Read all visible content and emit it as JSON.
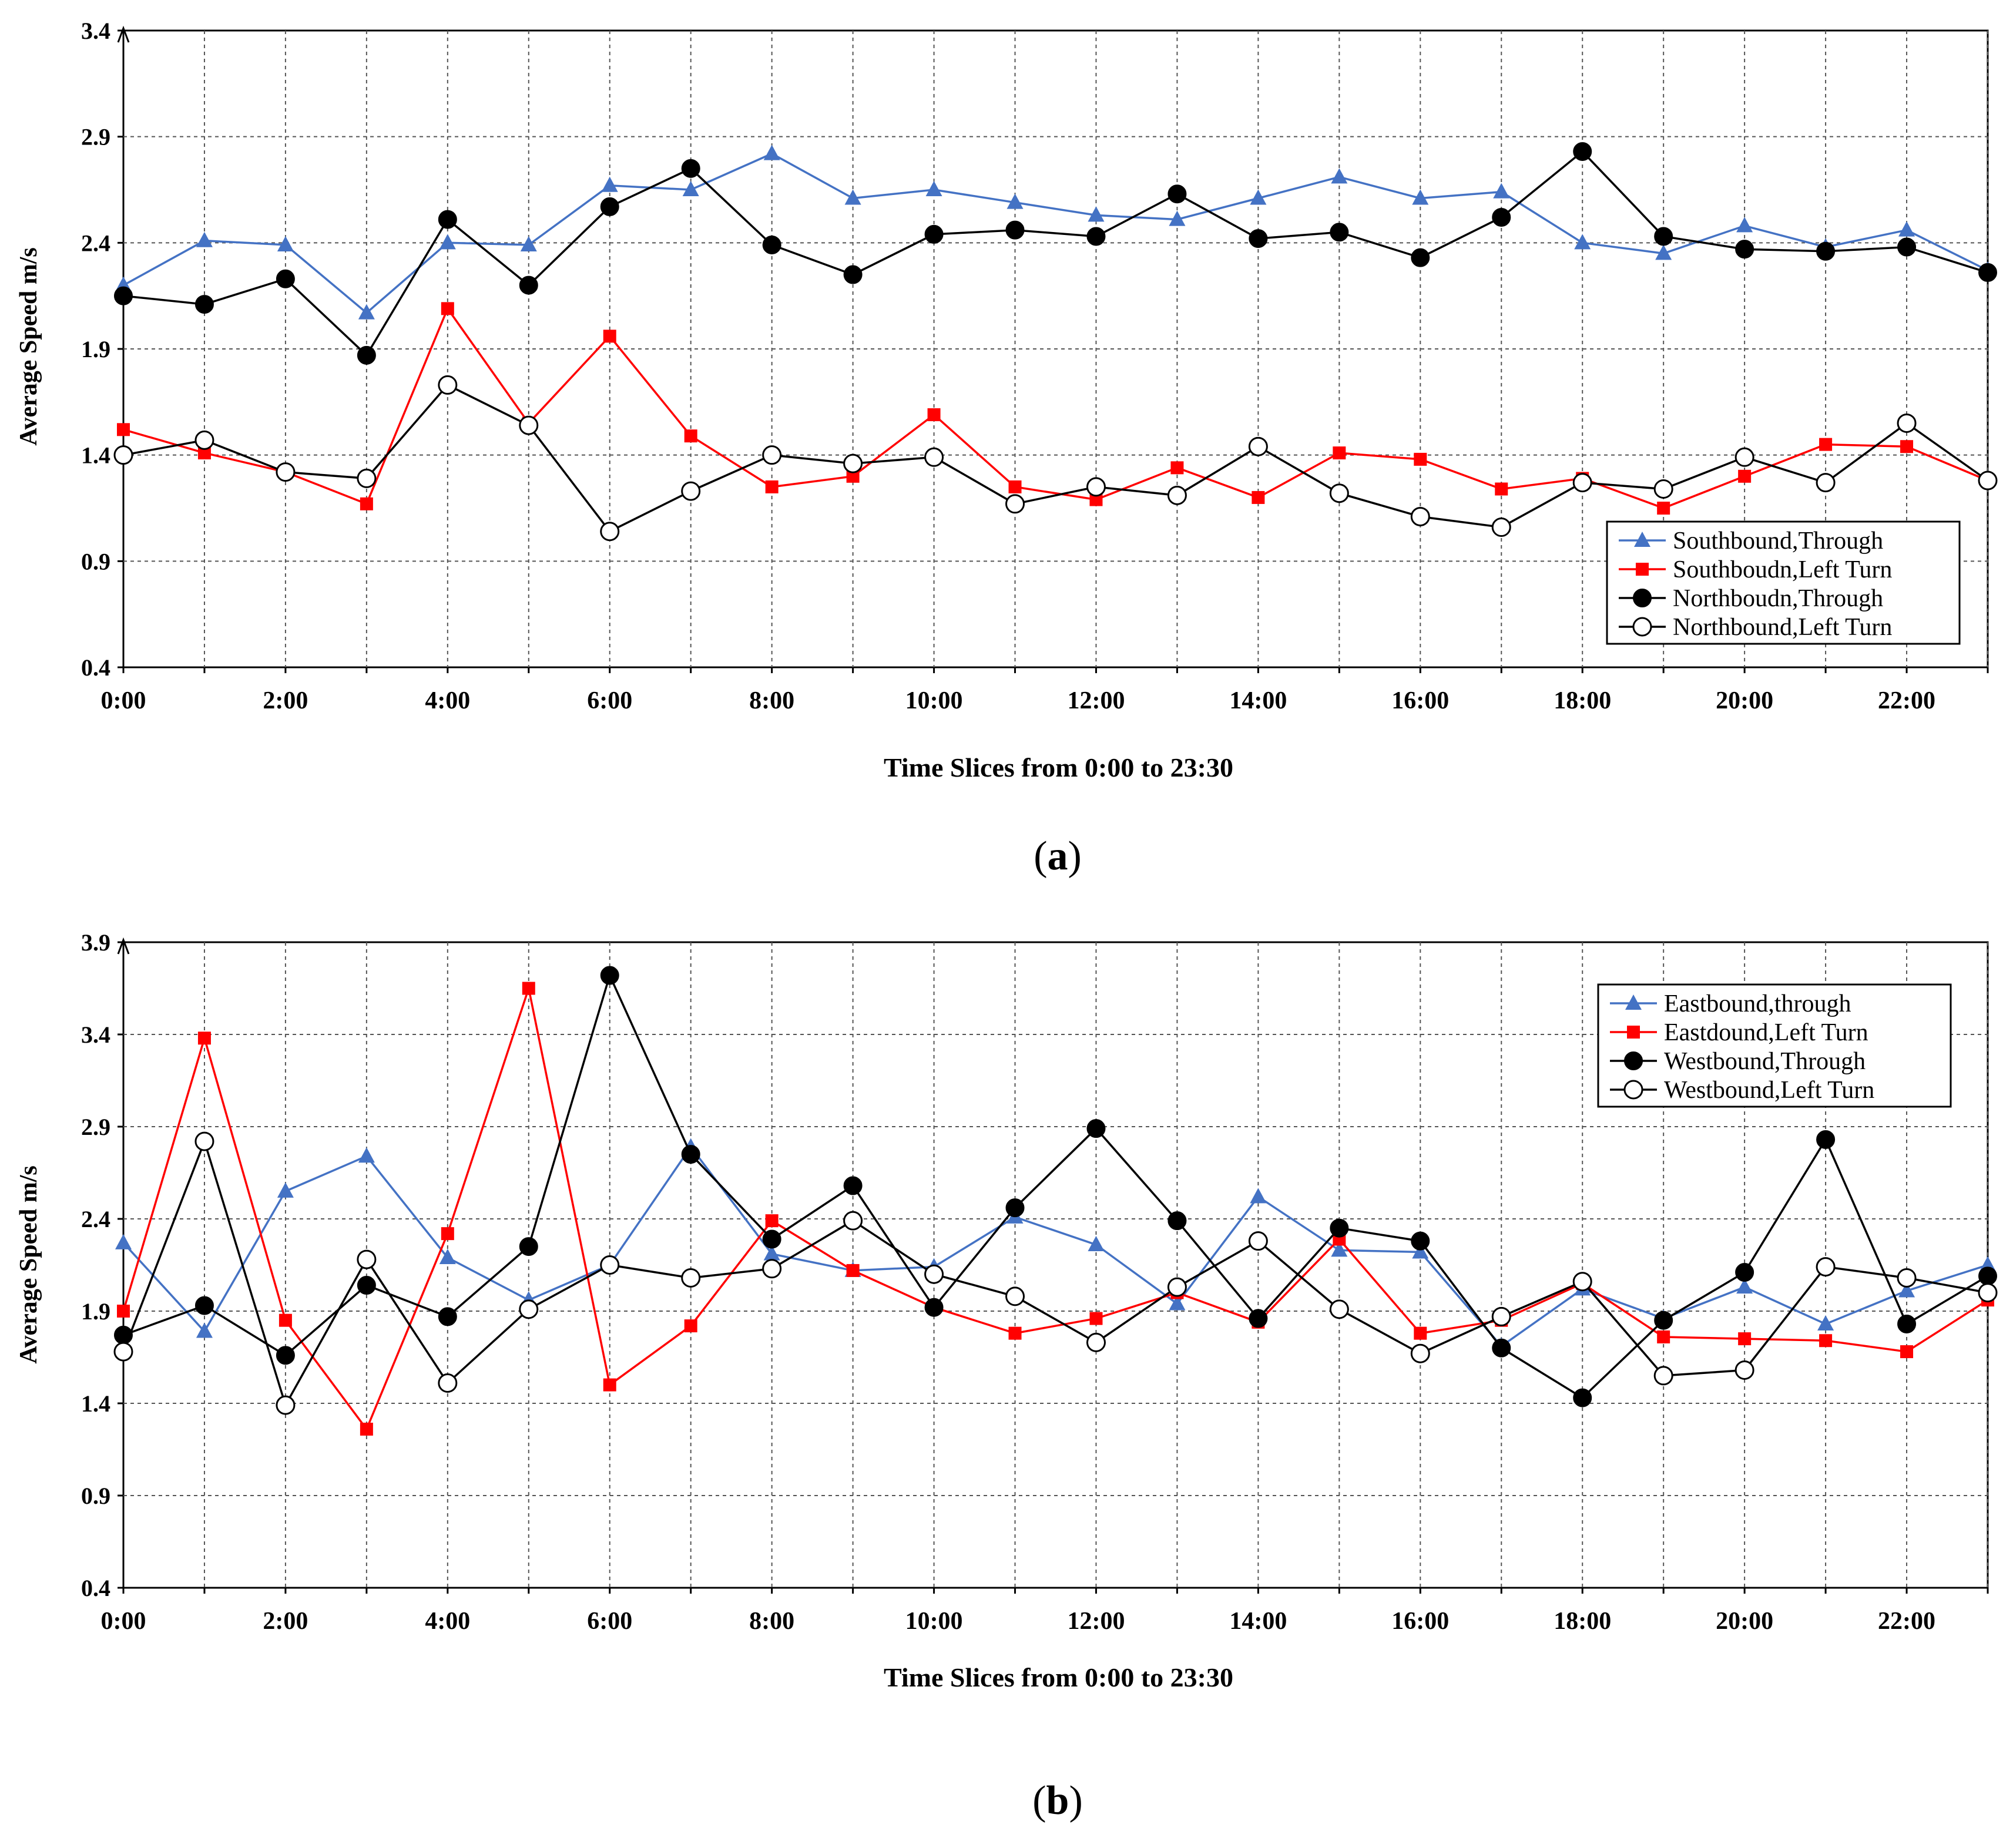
{
  "chart_data": [
    {
      "type": "line",
      "panel_label": "a",
      "xlabel": "Time Slices from 0:00 to 23:30",
      "ylabel": "Average Speed m/s",
      "ylim": [
        0.4,
        3.4
      ],
      "yticks": [
        "0.4",
        "0.9",
        "1.4",
        "1.9",
        "2.4",
        "2.9",
        "3.4"
      ],
      "x": [
        0,
        1,
        2,
        3,
        4,
        5,
        6,
        7,
        8,
        9,
        10,
        11,
        12,
        13,
        14,
        15,
        16,
        17,
        18,
        19,
        20,
        21,
        22,
        23
      ],
      "xtick_labels": [
        "0:00",
        "2:00",
        "4:00",
        "6:00",
        "8:00",
        "10:00",
        "12:00",
        "14:00",
        "16:00",
        "18:00",
        "20:00",
        "22:00"
      ],
      "grid": true,
      "legend_position": "bottom-right",
      "series": [
        {
          "name": "Southbound,Through",
          "color": "#4472C4",
          "marker": "triangle",
          "values": [
            2.2,
            2.41,
            2.39,
            2.07,
            2.4,
            2.39,
            2.67,
            2.65,
            2.82,
            2.61,
            2.65,
            2.59,
            2.53,
            2.51,
            2.61,
            2.71,
            2.61,
            2.64,
            2.4,
            2.35,
            2.48,
            2.38,
            2.46,
            2.27
          ]
        },
        {
          "name": "Southboudn,Left Turn",
          "color": "#FF0000",
          "marker": "square",
          "values": [
            1.52,
            1.41,
            1.32,
            1.17,
            2.09,
            1.55,
            1.96,
            1.49,
            1.25,
            1.3,
            1.59,
            1.25,
            1.19,
            1.34,
            1.2,
            1.41,
            1.38,
            1.24,
            1.29,
            1.15,
            1.3,
            1.45,
            1.44,
            1.28
          ]
        },
        {
          "name": "Northboudn,Through",
          "color": "#000000",
          "marker": "circle-filled",
          "values": [
            2.15,
            2.11,
            2.23,
            1.87,
            2.51,
            2.2,
            2.57,
            2.75,
            2.39,
            2.25,
            2.44,
            2.46,
            2.43,
            2.63,
            2.42,
            2.45,
            2.33,
            2.52,
            2.83,
            2.43,
            2.37,
            2.36,
            2.38,
            2.26
          ]
        },
        {
          "name": "Northbound,Left Turn",
          "color": "#000000",
          "marker": "circle-open",
          "values": [
            1.4,
            1.47,
            1.32,
            1.29,
            1.73,
            1.54,
            1.04,
            1.23,
            1.4,
            1.36,
            1.39,
            1.17,
            1.25,
            1.21,
            1.44,
            1.22,
            1.11,
            1.06,
            1.27,
            1.24,
            1.39,
            1.27,
            1.55,
            1.28
          ]
        }
      ]
    },
    {
      "type": "line",
      "panel_label": "b",
      "xlabel": "Time Slices from 0:00 to 23:30",
      "ylabel": "Average Speed m/s",
      "ylim": [
        0.4,
        3.9
      ],
      "yticks": [
        "0.4",
        "0.9",
        "1.4",
        "1.9",
        "2.4",
        "2.9",
        "3.4",
        "3.9"
      ],
      "x": [
        0,
        1,
        2,
        3,
        4,
        5,
        6,
        7,
        8,
        9,
        10,
        11,
        12,
        13,
        14,
        15,
        16,
        17,
        18,
        19,
        20,
        21,
        22,
        23
      ],
      "xtick_labels": [
        "0:00",
        "2:00",
        "4:00",
        "6:00",
        "8:00",
        "10:00",
        "12:00",
        "14:00",
        "16:00",
        "18:00",
        "20:00",
        "22:00"
      ],
      "grid": true,
      "legend_position": "top-right",
      "series": [
        {
          "name": "Eastbound,through",
          "color": "#4472C4",
          "marker": "triangle",
          "values": [
            2.27,
            1.79,
            2.55,
            2.74,
            2.19,
            1.96,
            2.15,
            2.79,
            2.21,
            2.12,
            2.14,
            2.41,
            2.26,
            1.94,
            2.52,
            2.23,
            2.22,
            1.71,
            2.02,
            1.86,
            2.03,
            1.83,
            2.01,
            2.15
          ]
        },
        {
          "name": "Eastdound,Left Turn",
          "color": "#FF0000",
          "marker": "square",
          "values": [
            1.9,
            3.38,
            1.85,
            1.26,
            2.32,
            3.65,
            1.5,
            1.82,
            2.39,
            2.12,
            1.92,
            1.78,
            1.86,
            2.0,
            1.84,
            2.29,
            1.78,
            1.85,
            2.05,
            1.76,
            1.75,
            1.74,
            1.68,
            1.96
          ]
        },
        {
          "name": "Westbound,Through",
          "color": "#000000",
          "marker": "circle-filled",
          "values": [
            1.77,
            1.93,
            1.66,
            2.04,
            1.87,
            2.25,
            3.72,
            2.75,
            2.29,
            2.58,
            1.92,
            2.46,
            2.89,
            2.39,
            1.86,
            2.35,
            2.28,
            1.7,
            1.43,
            1.85,
            2.11,
            2.83,
            1.83,
            2.09
          ]
        },
        {
          "name": "Westbound,Left Turn",
          "color": "#000000",
          "marker": "circle-open",
          "values": [
            1.68,
            2.82,
            1.39,
            2.18,
            1.51,
            1.91,
            2.15,
            2.08,
            2.13,
            2.39,
            2.1,
            1.98,
            1.73,
            2.03,
            2.28,
            1.91,
            1.67,
            1.87,
            2.06,
            1.55,
            1.58,
            2.14,
            2.08,
            2.0
          ]
        }
      ]
    }
  ]
}
